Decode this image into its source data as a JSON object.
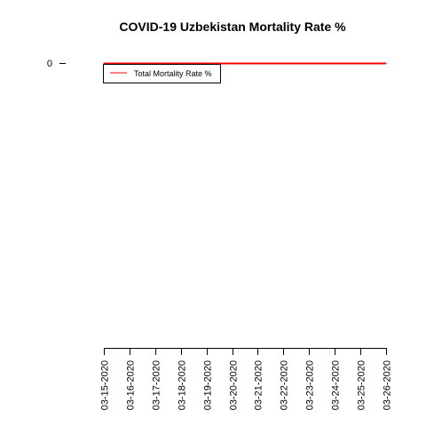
{
  "chart_data": {
    "type": "line",
    "title": "COVID-19 Uzbekistan Mortality Rate %",
    "xlabel": "",
    "ylabel": "",
    "x": [
      "03-15-2020",
      "03-16-2020",
      "03-17-2020",
      "03-18-2020",
      "03-19-2020",
      "03-20-2020",
      "03-21-2020",
      "03-22-2020",
      "03-23-2020",
      "03-24-2020",
      "03-25-2020",
      "03-26-2020"
    ],
    "series": [
      {
        "name": "Total Mortality Rate %",
        "color": "#ff0000",
        "values": [
          0,
          0,
          0,
          0,
          0,
          0,
          0,
          0,
          0,
          0,
          0,
          0
        ]
      }
    ],
    "y_ticks": [
      0
    ],
    "y_tick_labels": [
      "0"
    ],
    "legend_position": "top-left",
    "grid": false
  }
}
